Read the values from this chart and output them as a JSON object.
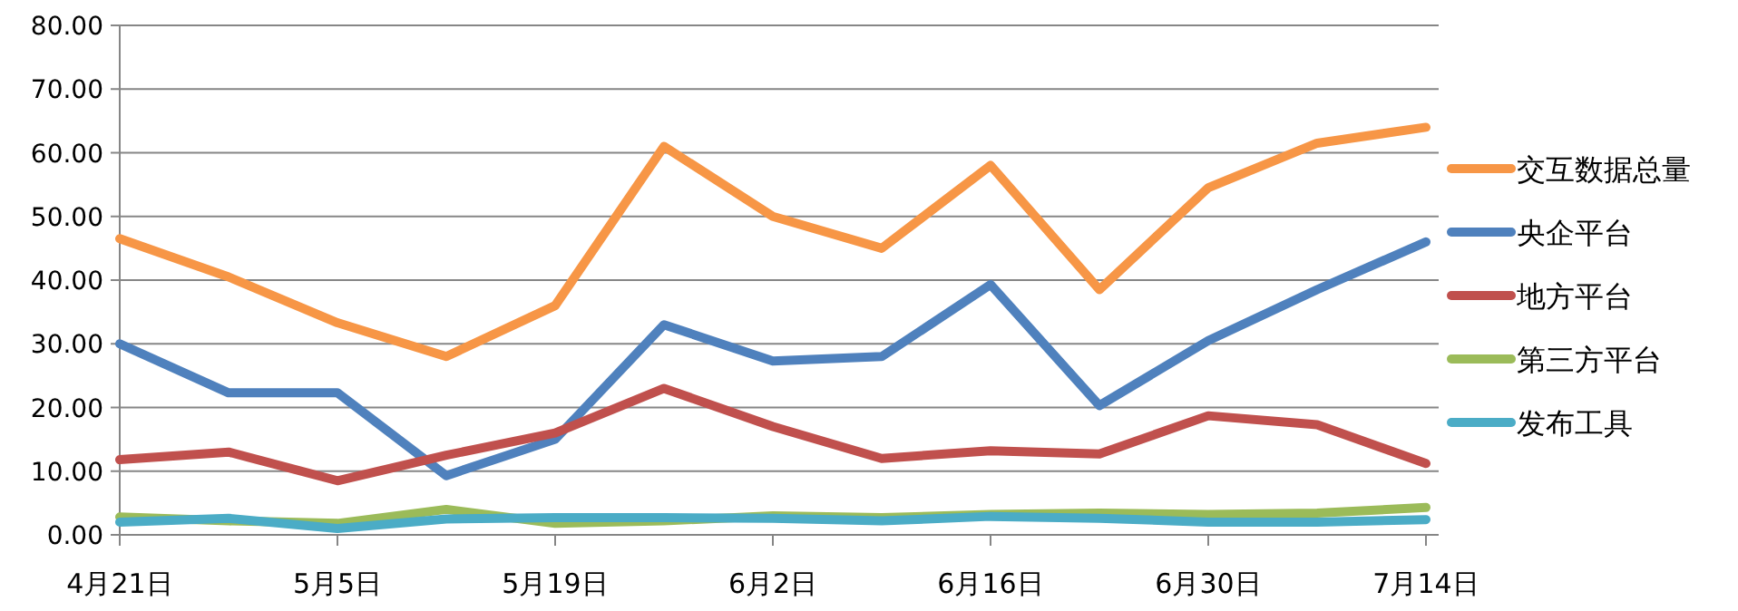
{
  "chart_data": {
    "type": "line",
    "categories": [
      "4月21日",
      null,
      "5月5日",
      null,
      "5月19日",
      null,
      "6月2日",
      null,
      "6月16日",
      null,
      "6月30日",
      null,
      "7月14日"
    ],
    "ylim": [
      0,
      80
    ],
    "yticks": [
      {
        "value": 0,
        "label": "0.00"
      },
      {
        "value": 10,
        "label": "10.00"
      },
      {
        "value": 20,
        "label": "20.00"
      },
      {
        "value": 30,
        "label": "30.00"
      },
      {
        "value": 40,
        "label": "40.00"
      },
      {
        "value": 50,
        "label": "50.00"
      },
      {
        "value": 60,
        "label": "60.00"
      },
      {
        "value": 70,
        "label": "70.00"
      },
      {
        "value": 80,
        "label": "80.00"
      }
    ],
    "grid": "y",
    "legend": "right",
    "marker": "none",
    "line_style": "solid",
    "series": [
      {
        "name": "交互数据总量",
        "color": "#f79646",
        "values": [
          46.5,
          40.5,
          33.3,
          28,
          36,
          61,
          50,
          45,
          58,
          38.5,
          54.5,
          61.5,
          64
        ]
      },
      {
        "name": "央企平台",
        "color": "#4f81bd",
        "values": [
          30,
          22.3,
          22.3,
          9.3,
          15,
          33,
          27.3,
          28,
          39.3,
          20.3,
          30.5,
          38.5,
          46
        ]
      },
      {
        "name": "地方平台",
        "color": "#c0504d",
        "values": [
          11.8,
          13,
          8.5,
          12.5,
          16,
          23,
          17,
          12,
          13.2,
          12.7,
          18.7,
          17.3,
          11.2
        ]
      },
      {
        "name": "第三方平台",
        "color": "#9bbb59",
        "values": [
          2.8,
          2.2,
          1.8,
          4,
          1.8,
          2.2,
          3,
          2.7,
          3.2,
          3.4,
          3.2,
          3.4,
          4.3
        ]
      },
      {
        "name": "发布工具",
        "color": "#4bacc6",
        "values": [
          2,
          2.6,
          1,
          2.5,
          2.7,
          2.7,
          2.6,
          2.2,
          2.9,
          2.6,
          2,
          2,
          2.4
        ]
      }
    ]
  }
}
